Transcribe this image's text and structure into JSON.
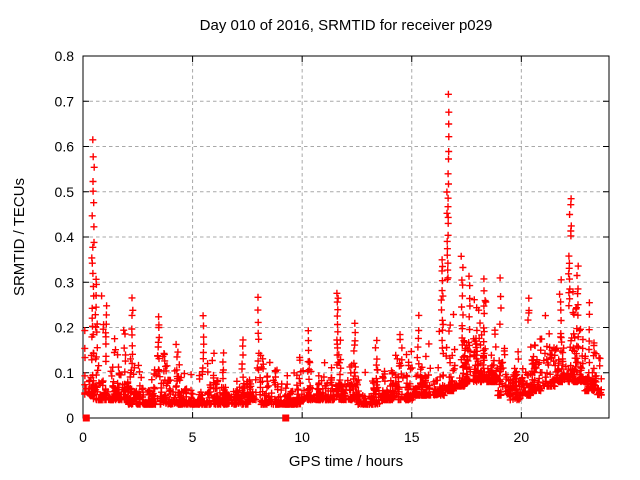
{
  "chart_data": {
    "type": "scatter",
    "title": "Day 010 of 2016, SRMTID for receiver p029",
    "xlabel": "GPS time / hours",
    "ylabel": "SRMTID / TECUs",
    "xlim": [
      0,
      24
    ],
    "ylim": [
      0,
      0.8
    ],
    "xticks": [
      0,
      5,
      10,
      15,
      20
    ],
    "xtick_labels": [
      "0",
      "5",
      "10",
      "15",
      "20"
    ],
    "yticks": [
      0,
      0.1,
      0.2,
      0.3,
      0.4,
      0.5,
      0.6,
      0.7,
      0.8
    ],
    "ytick_labels": [
      "0",
      "0.1",
      "0.2",
      "0.3",
      "0.4",
      "0.5",
      "0.6",
      "0.7",
      "0.8"
    ],
    "grid": true,
    "legend_position": "none",
    "marker": "plus",
    "marker_color": "#ff0000",
    "grid_color": "#a8a8a8",
    "border_color": "#000000",
    "notable_points": [
      {
        "x": 16.65,
        "y": 0.71,
        "note": "highest spike"
      },
      {
        "x": 16.65,
        "y": 0.69
      },
      {
        "x": 16.66,
        "y": 0.66
      },
      {
        "x": 16.67,
        "y": 0.62
      },
      {
        "x": 0.46,
        "y": 0.6,
        "note": "early-morning spike top"
      },
      {
        "x": 0.46,
        "y": 0.59
      },
      {
        "x": 22.2,
        "y": 0.48,
        "note": "late-evening spike top"
      },
      {
        "x": 22.2,
        "y": 0.44
      },
      {
        "x": 11.6,
        "y": 0.28
      },
      {
        "x": 20.35,
        "y": 0.26
      },
      {
        "x": 19.05,
        "y": 0.31
      }
    ],
    "zero_value_squares": {
      "marker": "filled-square",
      "x_hours": [
        0.15,
        9.25
      ],
      "y": 0
    },
    "summary": "Dense red plus-marker scatter of SRMTID vs GPS time. Baseline sits near 0.03-0.12 TECUs all day with grassy clumps; spikes near 0.45 h (to 0.60), 11.6 h (to 0.28), a large burst near 16.6 h (to 0.71), elevated activity 17-19 h (to ~0.35), and a burst near 22.2 h (to 0.48). Two filled squares mark zero values at 0.15 h and 9.25 h. Data spans ~0.08-23.65 h.",
    "point_cloud_model": {
      "seed": 20160110,
      "x_min": 0.08,
      "x_max": 23.65,
      "bands": [
        [
          0.0,
          0.05,
          0.32,
          40
        ],
        [
          0.5,
          0.04,
          0.28,
          45
        ],
        [
          1.0,
          0.04,
          0.24,
          45
        ],
        [
          1.5,
          0.04,
          0.15,
          45
        ],
        [
          2.0,
          0.03,
          0.24,
          45
        ],
        [
          2.5,
          0.03,
          0.13,
          45
        ],
        [
          3.0,
          0.03,
          0.16,
          45
        ],
        [
          3.5,
          0.03,
          0.21,
          45
        ],
        [
          4.0,
          0.03,
          0.14,
          45
        ],
        [
          4.5,
          0.03,
          0.12,
          45
        ],
        [
          5.0,
          0.03,
          0.12,
          45
        ],
        [
          5.5,
          0.03,
          0.2,
          45
        ],
        [
          6.0,
          0.03,
          0.11,
          45
        ],
        [
          6.5,
          0.03,
          0.11,
          45
        ],
        [
          7.0,
          0.03,
          0.13,
          45
        ],
        [
          7.5,
          0.04,
          0.16,
          45
        ],
        [
          8.0,
          0.03,
          0.15,
          45
        ],
        [
          8.5,
          0.03,
          0.11,
          45
        ],
        [
          9.0,
          0.03,
          0.11,
          45
        ],
        [
          9.5,
          0.03,
          0.13,
          45
        ],
        [
          10.0,
          0.04,
          0.15,
          45
        ],
        [
          10.5,
          0.04,
          0.13,
          45
        ],
        [
          11.0,
          0.04,
          0.14,
          45
        ],
        [
          11.5,
          0.04,
          0.19,
          45
        ],
        [
          12.0,
          0.04,
          0.17,
          45
        ],
        [
          12.5,
          0.03,
          0.15,
          45
        ],
        [
          13.0,
          0.03,
          0.13,
          45
        ],
        [
          13.5,
          0.04,
          0.14,
          45
        ],
        [
          14.0,
          0.04,
          0.15,
          45
        ],
        [
          14.5,
          0.04,
          0.17,
          45
        ],
        [
          15.0,
          0.05,
          0.17,
          45
        ],
        [
          15.5,
          0.05,
          0.19,
          45
        ],
        [
          16.0,
          0.05,
          0.23,
          45
        ],
        [
          16.5,
          0.06,
          0.33,
          50
        ],
        [
          17.0,
          0.07,
          0.3,
          55
        ],
        [
          17.5,
          0.08,
          0.29,
          55
        ],
        [
          18.0,
          0.08,
          0.27,
          55
        ],
        [
          18.5,
          0.08,
          0.24,
          55
        ],
        [
          19.0,
          0.05,
          0.21,
          45
        ],
        [
          19.5,
          0.04,
          0.17,
          45
        ],
        [
          20.0,
          0.05,
          0.19,
          45
        ],
        [
          20.5,
          0.06,
          0.21,
          45
        ],
        [
          21.0,
          0.07,
          0.23,
          45
        ],
        [
          21.5,
          0.08,
          0.29,
          50
        ],
        [
          22.0,
          0.08,
          0.32,
          50
        ],
        [
          22.5,
          0.08,
          0.29,
          50
        ],
        [
          23.0,
          0.06,
          0.24,
          45
        ],
        [
          23.5,
          0.05,
          0.16,
          14
        ]
      ],
      "spikes": [
        [
          0.45,
          0.18,
          0.38,
          10
        ],
        [
          0.46,
          0.39,
          0.61,
          9
        ],
        [
          0.6,
          0.14,
          0.31,
          9
        ],
        [
          1.05,
          0.12,
          0.25,
          8
        ],
        [
          1.9,
          0.1,
          0.2,
          6
        ],
        [
          2.25,
          0.12,
          0.26,
          8
        ],
        [
          3.45,
          0.1,
          0.22,
          10
        ],
        [
          4.3,
          0.08,
          0.16,
          6
        ],
        [
          5.5,
          0.1,
          0.22,
          8
        ],
        [
          6.4,
          0.08,
          0.14,
          5
        ],
        [
          7.3,
          0.09,
          0.18,
          6
        ],
        [
          8.0,
          0.1,
          0.26,
          8
        ],
        [
          9.9,
          0.07,
          0.14,
          5
        ],
        [
          10.3,
          0.08,
          0.19,
          6
        ],
        [
          11.6,
          0.12,
          0.28,
          12
        ],
        [
          12.4,
          0.09,
          0.21,
          8
        ],
        [
          13.4,
          0.07,
          0.17,
          6
        ],
        [
          14.5,
          0.09,
          0.19,
          6
        ],
        [
          15.3,
          0.1,
          0.22,
          7
        ],
        [
          16.4,
          0.14,
          0.35,
          14
        ],
        [
          16.65,
          0.3,
          0.5,
          14
        ],
        [
          16.67,
          0.51,
          0.71,
          8
        ],
        [
          17.3,
          0.16,
          0.35,
          10
        ],
        [
          17.6,
          0.15,
          0.31,
          8
        ],
        [
          18.3,
          0.15,
          0.3,
          9
        ],
        [
          19.05,
          0.2,
          0.31,
          4
        ],
        [
          20.35,
          0.21,
          0.26,
          4
        ],
        [
          21.8,
          0.15,
          0.3,
          8
        ],
        [
          22.2,
          0.25,
          0.36,
          9
        ],
        [
          22.25,
          0.4,
          0.48,
          6
        ],
        [
          22.55,
          0.15,
          0.34,
          9
        ],
        [
          23.1,
          0.12,
          0.25,
          6
        ]
      ]
    }
  }
}
